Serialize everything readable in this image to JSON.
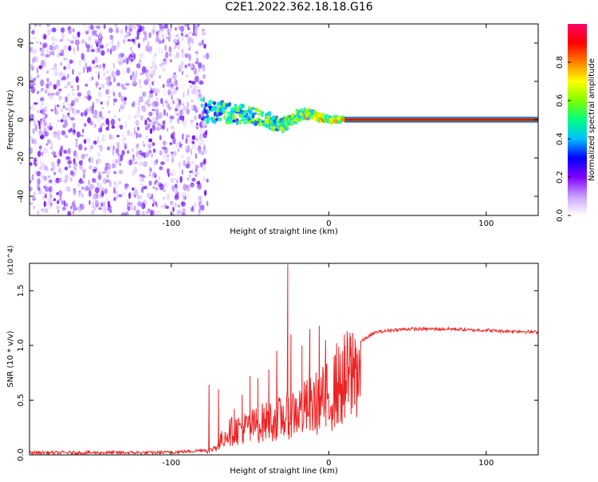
{
  "title": "C2E1.2022.362.18.18.G16",
  "chart_data": [
    {
      "type": "heatmap",
      "xlabel": "Height of straight line (km)",
      "ylabel": "Frequency (Hz)",
      "xlim": [
        -190,
        133
      ],
      "ylim": [
        -50,
        50
      ],
      "xticks": [
        -100,
        0,
        100
      ],
      "yticks": [
        -40,
        -20,
        0,
        20,
        40
      ],
      "colorbar": {
        "label": "Normalized spectral amplitude",
        "range": [
          0,
          1
        ],
        "ticks": [
          "0.0",
          "0.2",
          "0.4",
          "0.6",
          "0.8"
        ],
        "colors": [
          "#ffffff",
          "#c8a0ff",
          "#7f00ff",
          "#0000ff",
          "#00c0ff",
          "#00ff80",
          "#80ff00",
          "#ffff00",
          "#ff8000",
          "#ff0000",
          "#ff0066"
        ]
      },
      "regions": [
        {
          "x_start": -190,
          "x_end": -80,
          "pattern": "broadband noise spanning full frequency range"
        },
        {
          "x_start": -80,
          "x_end": 10,
          "pattern": "signal emerging near 0 Hz with frequency fluctuation"
        },
        {
          "x_start": 10,
          "x_end": 133,
          "pattern": "steady strong tone at 0 Hz"
        }
      ],
      "trace": {
        "x": [
          -80,
          -70,
          -60,
          -50,
          -40,
          -35,
          -30,
          -25,
          -20,
          -15,
          -10,
          -5,
          0,
          5,
          10
        ],
        "y": [
          5,
          4,
          3,
          2,
          1,
          -2,
          -3,
          -1,
          2,
          3,
          3,
          1,
          0,
          0,
          0
        ]
      },
      "grid": false
    },
    {
      "type": "line",
      "xlabel": "Height of straight line (km)",
      "ylabel": "SNR (10 * v/v)",
      "scale_label": "(x10^4)",
      "xlim": [
        -190,
        133
      ],
      "ylim": [
        0,
        1.75
      ],
      "xticks": [
        -100,
        0,
        100
      ],
      "yticks": [
        "0.0",
        "0.5",
        "1.0",
        "1.5"
      ],
      "series": [
        {
          "color": "#ee2222",
          "x": [
            -190,
            -150,
            -110,
            -90,
            -75,
            -70,
            -65,
            -60,
            -55,
            -50,
            -45,
            -40,
            -35,
            -30,
            -27,
            -25,
            -20,
            -15,
            -10,
            -5,
            0,
            5,
            10,
            15,
            20,
            25,
            30,
            40,
            50,
            60,
            70,
            80,
            90,
            100,
            110,
            120,
            133
          ],
          "y": [
            0.02,
            0.02,
            0.02,
            0.03,
            0.05,
            0.12,
            0.25,
            0.28,
            0.3,
            0.32,
            0.35,
            0.38,
            0.4,
            0.42,
            0.45,
            0.47,
            0.5,
            0.53,
            0.57,
            0.62,
            0.67,
            0.75,
            0.85,
            0.95,
            1.03,
            1.08,
            1.12,
            1.14,
            1.15,
            1.15,
            1.15,
            1.15,
            1.14,
            1.14,
            1.13,
            1.13,
            1.12
          ]
        }
      ],
      "peaks": [
        {
          "x": -76,
          "y": 0.64
        },
        {
          "x": -70,
          "y": 0.6
        },
        {
          "x": -60,
          "y": 0.42
        },
        {
          "x": -55,
          "y": 0.55
        },
        {
          "x": -50,
          "y": 0.72
        },
        {
          "x": -45,
          "y": 0.7
        },
        {
          "x": -38,
          "y": 0.78
        },
        {
          "x": -33,
          "y": 0.95
        },
        {
          "x": -26,
          "y": 1.74
        },
        {
          "x": -24,
          "y": 1.1
        },
        {
          "x": -17,
          "y": 1.0
        },
        {
          "x": -12,
          "y": 1.15
        },
        {
          "x": -6,
          "y": 1.18
        },
        {
          "x": -2,
          "y": 1.05
        },
        {
          "x": 5,
          "y": 1.02
        },
        {
          "x": 10,
          "y": 1.1
        },
        {
          "x": 14,
          "y": 1.08
        }
      ],
      "grid": false
    }
  ]
}
